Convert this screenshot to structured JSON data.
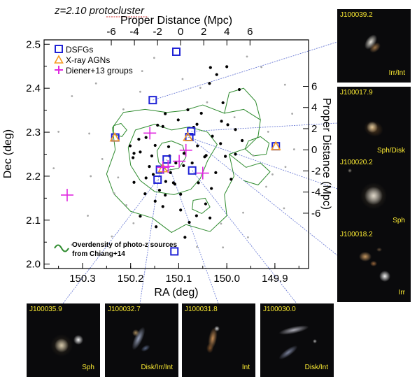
{
  "title": "z=2.10 protocluster",
  "chart_data": {
    "type": "scatter",
    "title": "z=2.10 protocluster",
    "xlabel": "RA (deg)",
    "ylabel": "Dec (deg)",
    "top_xlabel": "Proper Distance (Mpc)",
    "right_ylabel": "Proper Distance (Mpc)",
    "xlim": [
      150.38,
      149.83
    ],
    "ylim": [
      1.99,
      2.51
    ],
    "xticks": [
      150.3,
      150.2,
      150.1,
      150.0,
      149.9
    ],
    "xtick_labels": [
      "150.3",
      "150.2",
      "150.1",
      "150.0",
      "149.9"
    ],
    "yticks": [
      2.0,
      2.1,
      2.2,
      2.3,
      2.4,
      2.5
    ],
    "ytick_labels": [
      "2.0",
      "2.1",
      "2.2",
      "2.3",
      "2.4",
      "2.5"
    ],
    "top_ticks": [
      -6,
      -4,
      -2,
      0,
      2,
      4,
      6
    ],
    "top_tick_labels": [
      "-6",
      "-4",
      "-2",
      "0",
      "2",
      "4",
      "6"
    ],
    "right_ticks": [
      6,
      4,
      2,
      0,
      -2,
      -4,
      -6
    ],
    "right_tick_labels": [
      "6",
      "4",
      "2",
      "0",
      "-2",
      "-4",
      "-6"
    ],
    "legend": {
      "placement": "top-left",
      "entries": [
        {
          "label": "DSFGs",
          "color": "#1f22d6"
        },
        {
          "label": "X-ray AGNs",
          "color": "#f59a20"
        },
        {
          "label": "Diener+13 groups",
          "color": "#e028e0"
        }
      ]
    },
    "contour_note": "Overdensity of photo-z sources from Chiang+14",
    "contour_note_lines": [
      "Overdensity of photo-z sources",
      "from Chiang+14"
    ],
    "colors": {
      "dsfg": "#1f22d6",
      "agn": "#f59a20",
      "group": "#e028e0",
      "contour": "#2e8b2e",
      "guide": "#6e7ed6",
      "member": "#000000",
      "field": "#a8a8a8"
    },
    "series": [
      {
        "name": "DSFGs",
        "marker": "square",
        "points": [
          [
            150.105,
            2.483
          ],
          [
            150.154,
            2.373
          ],
          [
            150.232,
            2.288
          ],
          [
            150.139,
            2.215
          ],
          [
            150.144,
            2.192
          ],
          [
            150.125,
            2.238
          ],
          [
            150.078,
            2.289
          ],
          [
            150.074,
            2.302
          ],
          [
            150.072,
            2.213
          ],
          [
            149.898,
            2.268
          ],
          [
            150.109,
            2.029
          ]
        ]
      },
      {
        "name": "X-ray AGNs",
        "marker": "triangle",
        "points": [
          [
            150.233,
            2.288
          ],
          [
            150.081,
            2.289
          ],
          [
            149.898,
            2.268
          ],
          [
            150.133,
            2.218
          ]
        ]
      },
      {
        "name": "Diener+13 groups",
        "marker": "plus",
        "points": [
          [
            150.16,
            2.298
          ],
          [
            150.332,
            2.157
          ],
          [
            150.133,
            2.22
          ],
          [
            150.122,
            2.222
          ],
          [
            150.099,
            2.234
          ],
          [
            150.05,
            2.207
          ],
          [
            150.085,
            2.259
          ]
        ]
      },
      {
        "name": "members",
        "marker": "dot",
        "points": [
          [
            150.0,
            2.449
          ],
          [
            150.034,
            2.447
          ],
          [
            150.021,
            2.431
          ],
          [
            150.036,
            2.411
          ],
          [
            149.974,
            2.397
          ],
          [
            150.008,
            2.367
          ],
          [
            150.081,
            2.351
          ],
          [
            150.053,
            2.343
          ],
          [
            150.128,
            2.342
          ],
          [
            150.101,
            2.328
          ],
          [
            150.011,
            2.325
          ],
          [
            149.998,
            2.317
          ],
          [
            149.982,
            2.306
          ],
          [
            150.069,
            2.311
          ],
          [
            150.133,
            2.313
          ],
          [
            150.168,
            2.288
          ],
          [
            150.183,
            2.284
          ],
          [
            150.201,
            2.269
          ],
          [
            150.193,
            2.252
          ],
          [
            150.149,
            2.27
          ],
          [
            150.156,
            2.246
          ],
          [
            150.121,
            2.267
          ],
          [
            150.089,
            2.252
          ],
          [
            150.061,
            2.269
          ],
          [
            150.043,
            2.247
          ],
          [
            150.03,
            2.291
          ],
          [
            150.013,
            2.274
          ],
          [
            150.003,
            2.245
          ],
          [
            150.18,
            2.255
          ],
          [
            150.195,
            2.242
          ],
          [
            150.119,
            2.246
          ],
          [
            150.09,
            2.224
          ],
          [
            150.106,
            2.23
          ],
          [
            150.117,
            2.208
          ],
          [
            150.153,
            2.204
          ],
          [
            150.161,
            2.222
          ],
          [
            150.168,
            2.196
          ],
          [
            150.127,
            2.188
          ],
          [
            150.108,
            2.182
          ],
          [
            150.059,
            2.185
          ],
          [
            150.032,
            2.172
          ],
          [
            150.096,
            2.159
          ],
          [
            150.128,
            2.157
          ],
          [
            150.17,
            2.16
          ],
          [
            150.149,
            2.143
          ],
          [
            150.133,
            2.131
          ],
          [
            150.096,
            2.123
          ],
          [
            150.063,
            2.11
          ],
          [
            150.044,
            2.137
          ],
          [
            150.087,
            2.061
          ],
          [
            150.147,
            2.085
          ],
          [
            150.193,
            2.186
          ],
          [
            150.046,
            2.244
          ],
          [
            149.968,
            2.281
          ],
          [
            149.982,
            2.25
          ],
          [
            150.023,
            2.208
          ],
          [
            150.144,
            2.316
          ],
          [
            150.062,
            2.318
          ],
          [
            150.18,
            2.109
          ],
          [
            150.035,
            2.105
          ],
          [
            150.078,
            2.095
          ],
          [
            150.111,
            2.185
          ],
          [
            150.14,
            2.168
          ],
          [
            149.991,
            2.193
          ],
          [
            150.072,
            2.23
          ]
        ]
      },
      {
        "name": "field",
        "marker": "dot",
        "points": [
          [
            150.35,
            2.301
          ],
          [
            150.36,
            2.218
          ],
          [
            150.283,
            2.2
          ],
          [
            150.259,
            2.239
          ],
          [
            150.234,
            2.161
          ],
          [
            150.209,
            2.134
          ],
          [
            150.194,
            2.093
          ],
          [
            150.322,
            2.044
          ],
          [
            150.272,
            2.411
          ],
          [
            150.176,
            2.439
          ],
          [
            150.151,
            2.469
          ],
          [
            150.092,
            2.421
          ],
          [
            149.958,
            2.472
          ],
          [
            149.928,
            2.448
          ],
          [
            149.879,
            2.408
          ],
          [
            149.864,
            2.342
          ],
          [
            149.914,
            2.301
          ],
          [
            149.945,
            2.247
          ],
          [
            149.878,
            2.221
          ],
          [
            149.918,
            2.176
          ],
          [
            149.881,
            2.127
          ],
          [
            149.966,
            2.117
          ],
          [
            150.008,
            2.038
          ],
          [
            149.956,
            2.061
          ],
          [
            150.062,
            2.039
          ],
          [
            150.239,
            2.063
          ],
          [
            150.289,
            2.11
          ],
          [
            150.322,
            2.382
          ],
          [
            150.215,
            2.352
          ],
          [
            150.18,
            2.392
          ],
          [
            150.055,
            2.401
          ],
          [
            150.041,
            2.368
          ],
          [
            149.984,
            2.334
          ],
          [
            149.905,
            2.204
          ],
          [
            150.226,
            2.197
          ],
          [
            150.286,
            2.297
          ],
          [
            150.012,
            2.092
          ],
          [
            149.86,
            2.261
          ]
        ]
      }
    ],
    "cutouts": [
      {
        "id": "J100039.2",
        "type": "Irr/Int",
        "target": [
          150.154,
          2.373
        ]
      },
      {
        "id": "J100017.9",
        "type": "Sph/Disk",
        "target": [
          150.074,
          2.302
        ]
      },
      {
        "id": "J100020.2",
        "type": "Sph",
        "target": [
          150.081,
          2.289
        ]
      },
      {
        "id": "J100018.2",
        "type": "Irr",
        "target": [
          150.078,
          2.289
        ]
      },
      {
        "id": "J100035.9",
        "type": "Sph",
        "target": [
          150.144,
          2.192
        ]
      },
      {
        "id": "J100032.7",
        "type": "Disk/Irr/Int",
        "target": [
          150.139,
          2.215
        ]
      },
      {
        "id": "J100031.8",
        "type": "Int",
        "target": [
          150.125,
          2.238
        ]
      },
      {
        "id": "J100030.0",
        "type": "Disk/Int",
        "target": [
          150.072,
          2.213
        ]
      }
    ]
  }
}
